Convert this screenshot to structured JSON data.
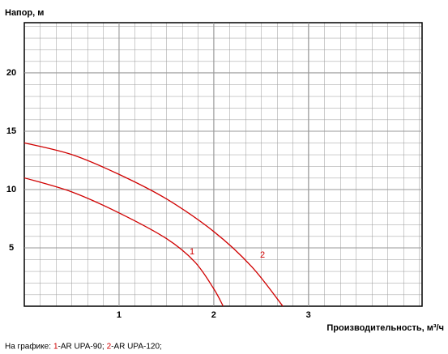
{
  "chart_data": {
    "type": "line",
    "y_label": "Напор, м",
    "x_label": "Производительность, м³/ч",
    "legend_prefix": "На графике:",
    "xlim": [
      0,
      4.2
    ],
    "xticks": [
      1,
      2,
      3
    ],
    "ylim": [
      0,
      24.3
    ],
    "yticks": [
      5,
      10,
      15,
      20
    ],
    "grid": true,
    "series": [
      {
        "label": "1",
        "name": "-AR UPA-90;",
        "color": "#d00000",
        "x": [
          0,
          0.5,
          1,
          1.5,
          1.8,
          2.0,
          2.1
        ],
        "values": [
          11,
          9.8,
          8,
          5.8,
          3.8,
          1.5,
          0
        ]
      },
      {
        "label": "2",
        "name": "-AR UPA-120;",
        "color": "#d00000",
        "x": [
          0,
          0.5,
          1,
          1.5,
          2,
          2.4,
          2.73
        ],
        "values": [
          14,
          13,
          11.3,
          9.2,
          6.4,
          3.4,
          0
        ]
      }
    ]
  }
}
